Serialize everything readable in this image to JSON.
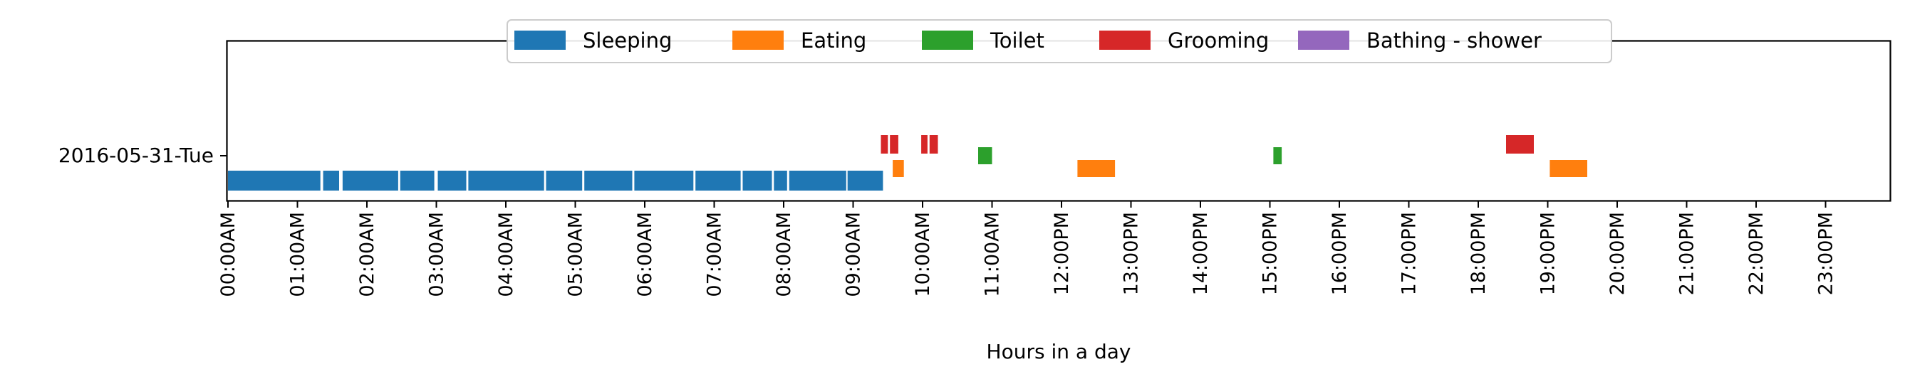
{
  "chart_data": {
    "type": "timeline",
    "xlabel": "Hours in a day",
    "row_label": "2016-05-31-Tue",
    "xlim_hours": [
      0,
      24
    ],
    "tick_labels": [
      "00:00AM",
      "01:00AM",
      "02:00AM",
      "03:00AM",
      "04:00AM",
      "05:00AM",
      "06:00AM",
      "07:00AM",
      "08:00AM",
      "09:00AM",
      "10:00AM",
      "11:00AM",
      "12:00PM",
      "13:00PM",
      "14:00PM",
      "15:00PM",
      "16:00PM",
      "17:00PM",
      "18:00PM",
      "19:00PM",
      "20:00PM",
      "21:00PM",
      "22:00PM",
      "23:00PM"
    ],
    "legend_placement": "top-center",
    "series": [
      {
        "name": "Sleeping",
        "color": "#1f77b4",
        "level": 0,
        "intervals": [
          [
            0.0,
            1.33
          ],
          [
            1.37,
            1.6
          ],
          [
            1.65,
            2.45
          ],
          [
            2.48,
            2.97
          ],
          [
            3.02,
            3.43
          ],
          [
            3.46,
            4.55
          ],
          [
            4.58,
            5.1
          ],
          [
            5.13,
            5.82
          ],
          [
            5.85,
            6.7
          ],
          [
            6.73,
            7.38
          ],
          [
            7.41,
            7.83
          ],
          [
            7.86,
            8.05
          ],
          [
            8.08,
            8.9
          ],
          [
            8.92,
            9.43
          ]
        ]
      },
      {
        "name": "Eating",
        "color": "#ff7f0e",
        "level": 1,
        "intervals": [
          [
            9.57,
            9.73
          ],
          [
            12.23,
            12.77
          ],
          [
            19.03,
            19.57
          ]
        ]
      },
      {
        "name": "Toilet",
        "color": "#2ca02c",
        "level": 2,
        "intervals": [
          [
            10.8,
            11.0
          ],
          [
            15.05,
            15.17
          ]
        ]
      },
      {
        "name": "Grooming",
        "color": "#d62728",
        "level": 3,
        "intervals": [
          [
            9.4,
            9.5
          ],
          [
            9.53,
            9.65
          ],
          [
            9.98,
            10.07
          ],
          [
            10.1,
            10.22
          ],
          [
            18.4,
            18.8
          ]
        ]
      },
      {
        "name": "Bathing - shower",
        "color": "#9467bd",
        "level": 4,
        "intervals": []
      }
    ]
  }
}
